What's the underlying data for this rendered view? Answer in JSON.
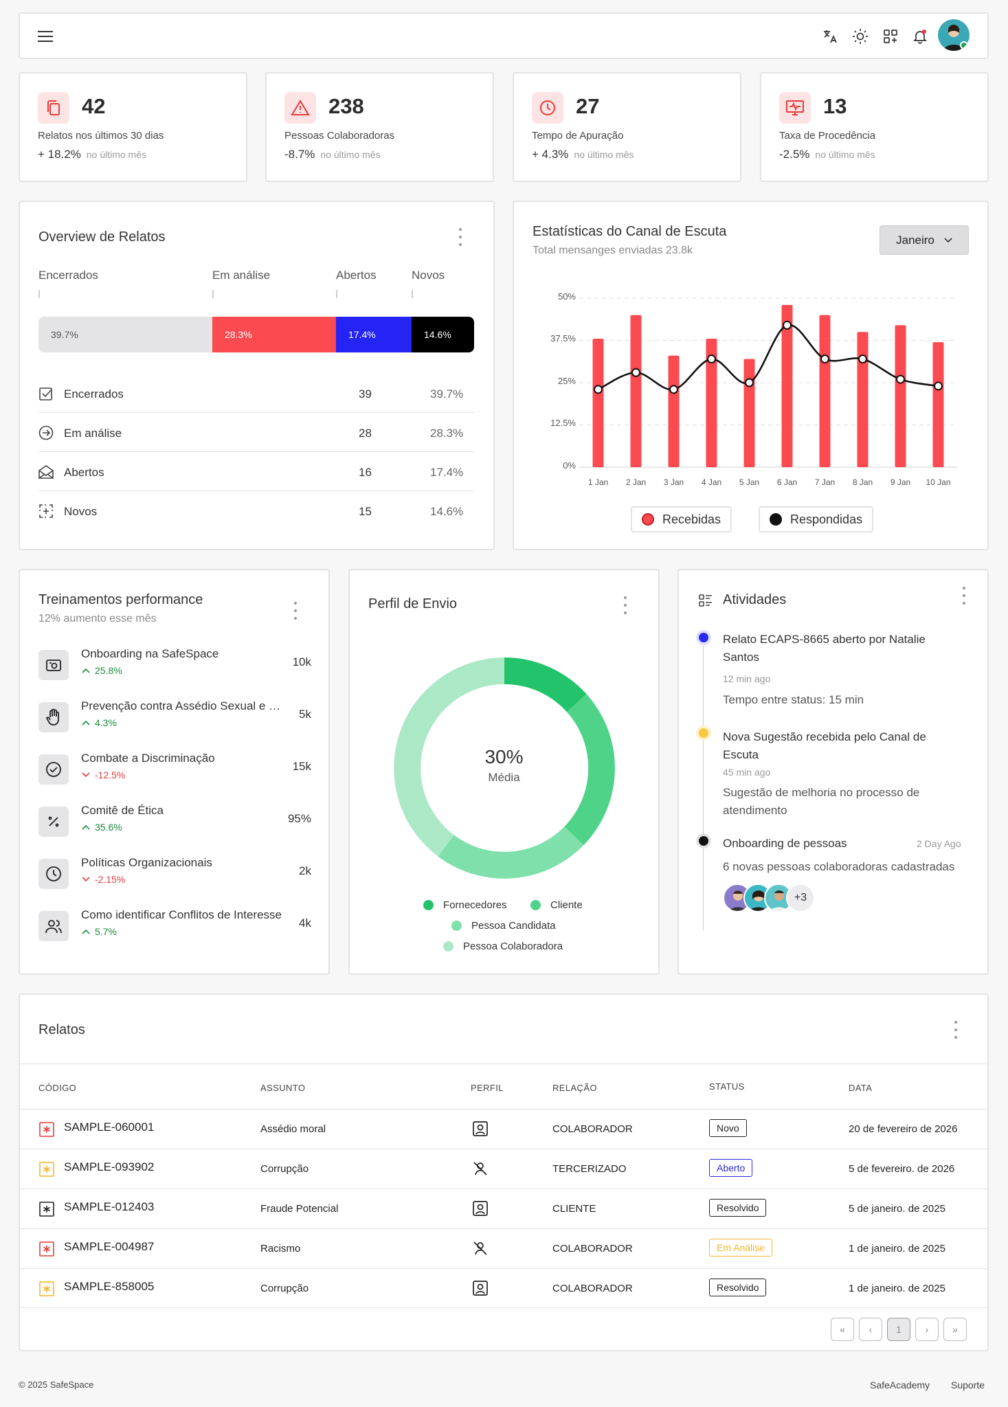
{
  "header": {
    "icons": [
      "menu-icon",
      "translate-icon",
      "sun-icon",
      "apps-icon",
      "bell-icon",
      "avatar"
    ]
  },
  "stats": [
    {
      "value": "42",
      "label": "Relatos nos últimos 30 dias",
      "change": "+ 18.2%",
      "period": "no último mês",
      "icon": "copy-icon"
    },
    {
      "value": "238",
      "label": "Pessoas Colaboradoras",
      "change": "-8.7%",
      "period": "no último mês",
      "icon": "alert-triangle-icon"
    },
    {
      "value": "27",
      "label": "Tempo de Apuração",
      "change": "+ 4.3%",
      "period": "no último mês",
      "icon": "clock-icon"
    },
    {
      "value": "13",
      "label": "Taxa de Procedência",
      "change": "-2.5%",
      "period": "no último mês",
      "icon": "monitor-pulse-icon"
    }
  ],
  "overview": {
    "title": "Overview de Relatos",
    "columns": [
      "Encerrados",
      "Em análise",
      "Abertos",
      "Novos"
    ],
    "bar": [
      {
        "pct": "39.7%",
        "color": "#e4e4e6"
      },
      {
        "pct": "28.3%",
        "color": "#fb4a50"
      },
      {
        "pct": "17.4%",
        "color": "#2424f5"
      },
      {
        "pct": "14.6%",
        "color": "#000000"
      }
    ],
    "rows": [
      {
        "label": "Encerrados",
        "count": "39",
        "pct": "39.7%",
        "icon": "check-square-icon"
      },
      {
        "label": "Em análise",
        "count": "28",
        "pct": "28.3%",
        "icon": "arrow-circle-icon"
      },
      {
        "label": "Abertos",
        "count": "16",
        "pct": "17.4%",
        "icon": "envelope-open-icon"
      },
      {
        "label": "Novos",
        "count": "15",
        "pct": "14.6%",
        "icon": "plus-dashed-icon"
      }
    ]
  },
  "stats_chart": {
    "title": "Estatísticas do Canal de Escuta",
    "subtitle": "Total mensanges enviadas 23.8k",
    "month": "Janeiro",
    "legend": {
      "recebidas": "Recebidas",
      "respondidas": "Respondidas"
    }
  },
  "chart_data": {
    "type": "bar",
    "categories": [
      "1 Jan",
      "2 Jan",
      "3 Jan",
      "4 Jan",
      "5 Jan",
      "6 Jan",
      "7 Jan",
      "8 Jan",
      "9 Jan",
      "10 Jan"
    ],
    "yticks": [
      "0%",
      "12.5%",
      "25%",
      "37.5%",
      "50%"
    ],
    "ylim": [
      0,
      50
    ],
    "series": [
      {
        "name": "Recebidas",
        "type": "bar",
        "color": "#fb4a50",
        "values": [
          38,
          45,
          33,
          38,
          32,
          48,
          45,
          40,
          42,
          37
        ]
      },
      {
        "name": "Respondidas",
        "type": "line",
        "color": "#111111",
        "values": [
          23,
          28,
          23,
          32,
          25,
          42,
          32,
          32,
          26,
          24
        ]
      }
    ]
  },
  "trainings": {
    "title": "Treinamentos performance",
    "subtitle": "12% aumento esse mês",
    "items": [
      {
        "name": "Onboarding na SafeSpace",
        "change": "25.8%",
        "dir": "up",
        "value": "10k",
        "icon": "camera-icon"
      },
      {
        "name": "Prevenção contra Assédio Sexual e Moral",
        "change": "4.3%",
        "dir": "up",
        "value": "5k",
        "icon": "hand-icon"
      },
      {
        "name": "Combate a Discriminação",
        "change": "-12.5%",
        "dir": "down",
        "value": "15k",
        "icon": "check-circle-icon"
      },
      {
        "name": "Comitê de Ética",
        "change": "35.6%",
        "dir": "up",
        "value": "95%",
        "icon": "percent-icon"
      },
      {
        "name": "Políticas Organizacionais",
        "change": "-2.15%",
        "dir": "down",
        "value": "2k",
        "icon": "clock-icon"
      },
      {
        "name": "Como identificar Conflitos de Interesse",
        "change": "5.7%",
        "dir": "up",
        "value": "4k",
        "icon": "users-icon"
      }
    ]
  },
  "profile": {
    "title": "Perfil de Envio",
    "center_value": "30%",
    "center_label": "Média",
    "legend": [
      {
        "name": "Fornecedores",
        "color": "#22c36a"
      },
      {
        "name": "Cliente",
        "color": "#4fd389"
      },
      {
        "name": "Pessoa Candidata",
        "color": "#7fe0ab"
      },
      {
        "name": "Pessoa Colaboradora",
        "color": "#abe9c6"
      }
    ]
  },
  "activities": {
    "title": "Atividades",
    "items": [
      {
        "title": "Relato ECAPS-8665 aberto por Natalie Santos",
        "time": "12 min ago",
        "desc": "Tempo entre status: 15 min",
        "color": "#2a2af0"
      },
      {
        "title": "Nova Sugestão recebida pelo Canal de Escuta",
        "time": "45 min ago",
        "desc": "Sugestão de melhoria no processo de atendimento",
        "color": "#fbc940"
      },
      {
        "title": "Onboarding de pessoas",
        "time": "2 Day Ago",
        "desc": "6 novas pessoas colaboradoras cadastradas",
        "color": "#111111",
        "extra": "+3"
      }
    ]
  },
  "relatos": {
    "title": "Relatos",
    "headers": [
      "CÓDIGO",
      "ASSUNTO",
      "PERFIL",
      "RELAÇÃO",
      "STATUS",
      "DATA"
    ],
    "rows": [
      {
        "code": "SAMPLE-060001",
        "subject": "Assédio moral",
        "profile_icon": "user-badge-icon",
        "relation": "COLABORADOR",
        "status": "Novo",
        "status_color": "#222222",
        "date": "20 de fevereiro de 2026",
        "mark_color": "#e83a3a"
      },
      {
        "code": "SAMPLE-093902",
        "subject": "Corrupção",
        "profile_icon": "user-off-icon",
        "relation": "TERCERIZADO",
        "status": "Aberto",
        "status_color": "#2a2ad6",
        "date": "5 de fevereiro. de 2026",
        "mark_color": "#f3b52b"
      },
      {
        "code": "SAMPLE-012403",
        "subject": "Fraude Potencial",
        "profile_icon": "user-badge-icon",
        "relation": "CLIENTE",
        "status": "Resolvido",
        "status_color": "#222222",
        "date": "5 de janeiro. de 2025",
        "mark_color": "#222222"
      },
      {
        "code": "SAMPLE-004987",
        "subject": "Racismo",
        "profile_icon": "user-off-icon",
        "relation": "COLABORADOR",
        "status": "Em Análise",
        "status_color": "#f3b52b",
        "date": "1 de janeiro. de 2025",
        "mark_color": "#e83a3a"
      },
      {
        "code": "SAMPLE-858005",
        "subject": "Corrupção",
        "profile_icon": "user-badge-icon",
        "relation": "COLABORADOR",
        "status": "Resolvido",
        "status_color": "#222222",
        "date": "1 de janeiro. de 2025",
        "mark_color": "#f3b52b"
      }
    ],
    "pagination": {
      "first": "«",
      "prev": "‹",
      "page": "1",
      "next": "›",
      "last": "»"
    }
  },
  "footer": {
    "copyright": "© 2025 SafeSpace",
    "links": [
      "SafeAcademy",
      "Suporte"
    ]
  }
}
